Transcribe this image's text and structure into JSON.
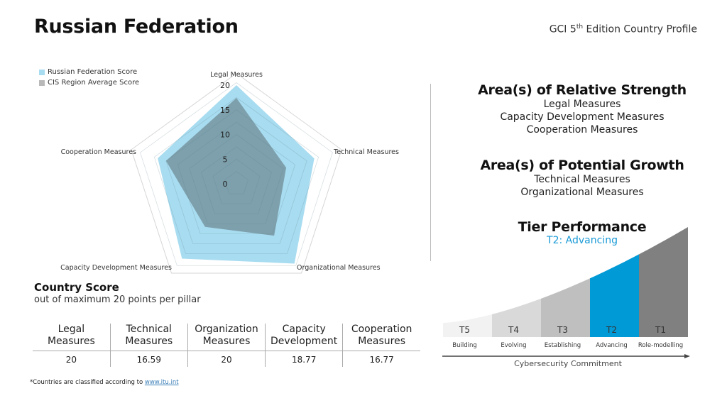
{
  "header": {
    "title": "Russian Federation",
    "subtitle_prefix": "GCI 5",
    "subtitle_sup": "th",
    "subtitle_suffix": " Edition Country Profile"
  },
  "colors": {
    "country": "#a8dcf0",
    "region": "#7a9ca8",
    "region_legend": "#b9b9b9",
    "accent": "#1a9ad6",
    "tier_colors": [
      "#f2f2f2",
      "#d9d9d9",
      "#bfbfbf",
      "#009ad6",
      "#808080"
    ]
  },
  "chart_data": {
    "type": "radar",
    "axes": [
      "Legal Measures",
      "Technical Measures",
      "Organizational Measures",
      "Capacity Development Measures",
      "Cooperation Measures"
    ],
    "scale_ticks": [
      "20",
      "15",
      "10",
      "5",
      "0"
    ],
    "range": [
      0,
      20
    ],
    "legend_placement": "top-left",
    "series": [
      {
        "name": "Russian Federation Score",
        "values": [
          20,
          16.59,
          20,
          18.77,
          16.77
        ]
      },
      {
        "name": "CIS Region Average Score",
        "values": [
          17.4,
          10.6,
          13.0,
          10.8,
          15.0
        ]
      }
    ]
  },
  "strength": {
    "heading": "Area(s) of Relative Strength",
    "items": [
      "Legal Measures",
      "Capacity Development Measures",
      "Cooperation Measures"
    ]
  },
  "growth": {
    "heading": "Area(s) of Potential Growth",
    "items": [
      "Technical Measures",
      "Organizational Measures"
    ]
  },
  "tier": {
    "heading": "Tier Performance",
    "current": "T2: Advancing",
    "tiers": [
      {
        "code": "T5",
        "name": "Building"
      },
      {
        "code": "T4",
        "name": "Evolving"
      },
      {
        "code": "T3",
        "name": "Establishing"
      },
      {
        "code": "T2",
        "name": "Advancing"
      },
      {
        "code": "T1",
        "name": "Role-modelling"
      }
    ],
    "highlighted_index": 3,
    "axis_label": "Cybersecurity Commitment"
  },
  "scores": {
    "heading": "Country Score",
    "subheading": "out of maximum 20 points per pillar",
    "columns": [
      {
        "line1": "Legal",
        "line2": "Measures",
        "value": "20"
      },
      {
        "line1": "Technical",
        "line2": "Measures",
        "value": "16.59"
      },
      {
        "line1": "Organization",
        "line2": "Measures",
        "value": "20"
      },
      {
        "line1": "Capacity",
        "line2": "Development",
        "value": "18.77"
      },
      {
        "line1": "Cooperation",
        "line2": "Measures",
        "value": "16.77"
      }
    ]
  },
  "footnote": {
    "text": "*Countries are classified according to ",
    "link": "www.itu.int"
  }
}
